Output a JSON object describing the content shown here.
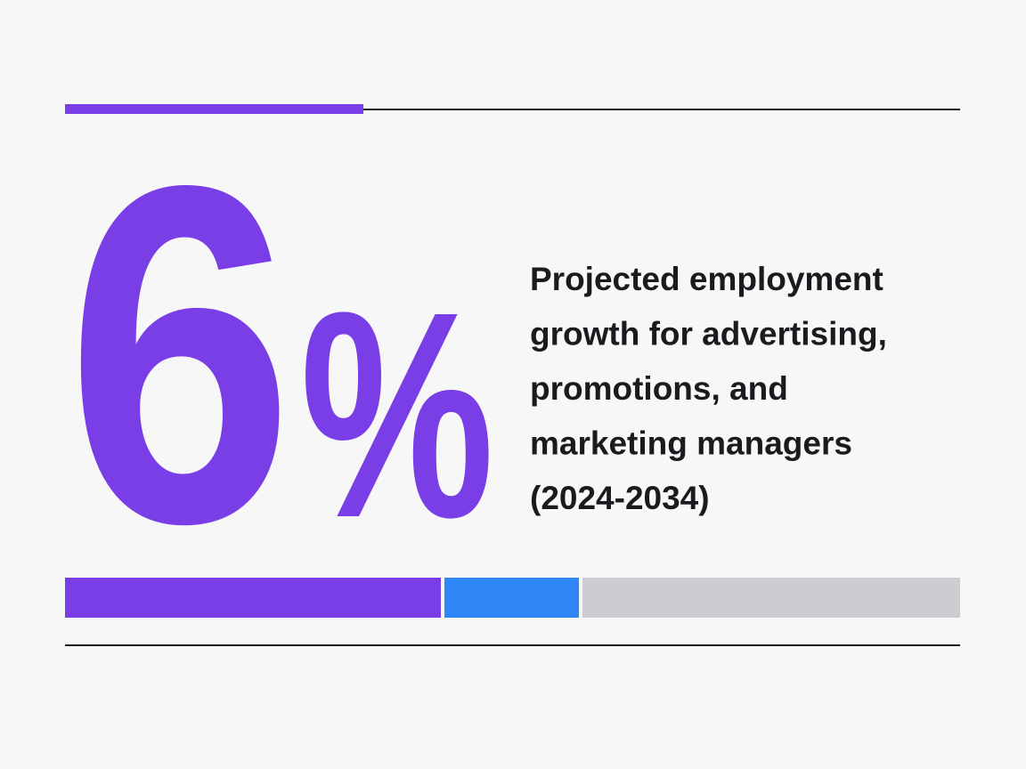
{
  "stat": {
    "number": "6",
    "symbol": "%"
  },
  "description": {
    "lines": [
      "Projected employment",
      "growth for advertising,",
      "promotions, and",
      "marketing managers",
      "(2024-2034)"
    ]
  }
}
